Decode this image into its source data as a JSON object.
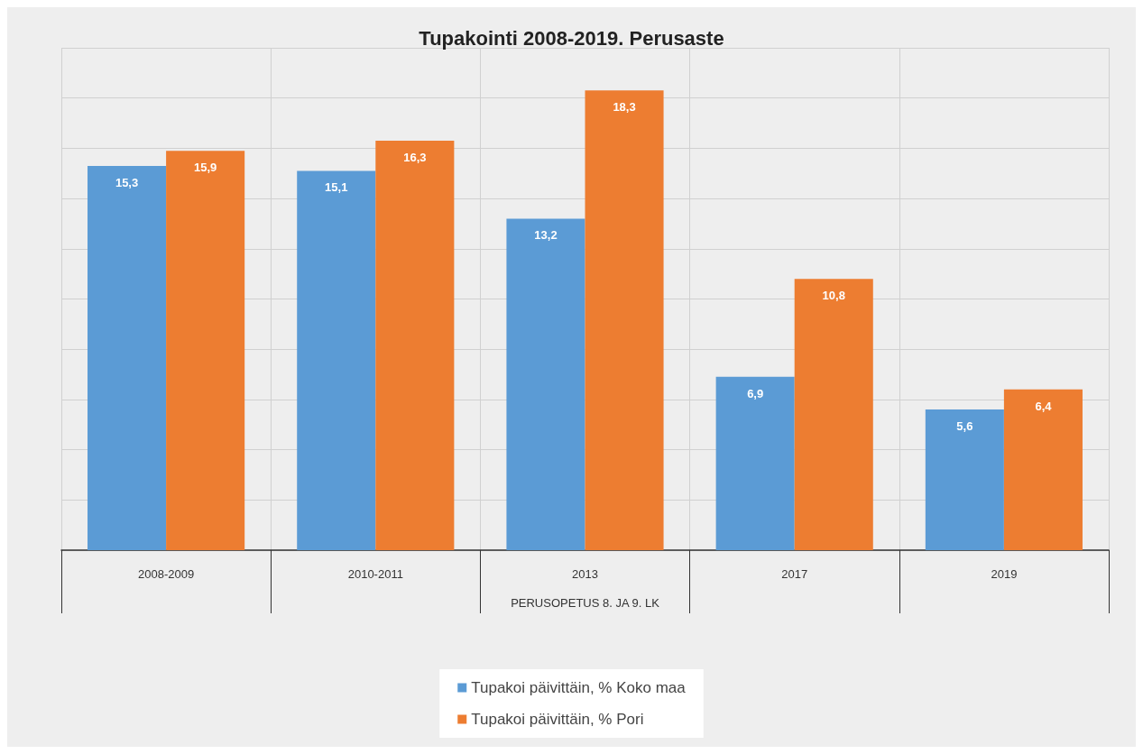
{
  "chart_data": {
    "type": "bar",
    "title": "Tupakointi 2008-2019. Perusaste",
    "xlabel": "PERUSOPETUS 8. JA 9. LK",
    "categories": [
      "2008-2009",
      "2010-2011",
      "2013",
      "2017",
      "2019"
    ],
    "series": [
      {
        "name": "Tupakoi päivittäin, % Koko maa",
        "color": "#5b9bd5",
        "values": [
          15.3,
          15.1,
          13.2,
          6.9,
          5.6
        ],
        "value_labels": [
          "15,3",
          "15,1",
          "13,2",
          "6,9",
          "5,6"
        ]
      },
      {
        "name": "Tupakoi päivittäin, % Pori",
        "color": "#ed7d31",
        "values": [
          15.9,
          16.3,
          18.3,
          10.8,
          6.4
        ],
        "value_labels": [
          "15,9",
          "16,3",
          "18,3",
          "10,8",
          "6,4"
        ]
      }
    ],
    "tick_labels": "x",
    "grid": true,
    "legend": "bottom"
  }
}
